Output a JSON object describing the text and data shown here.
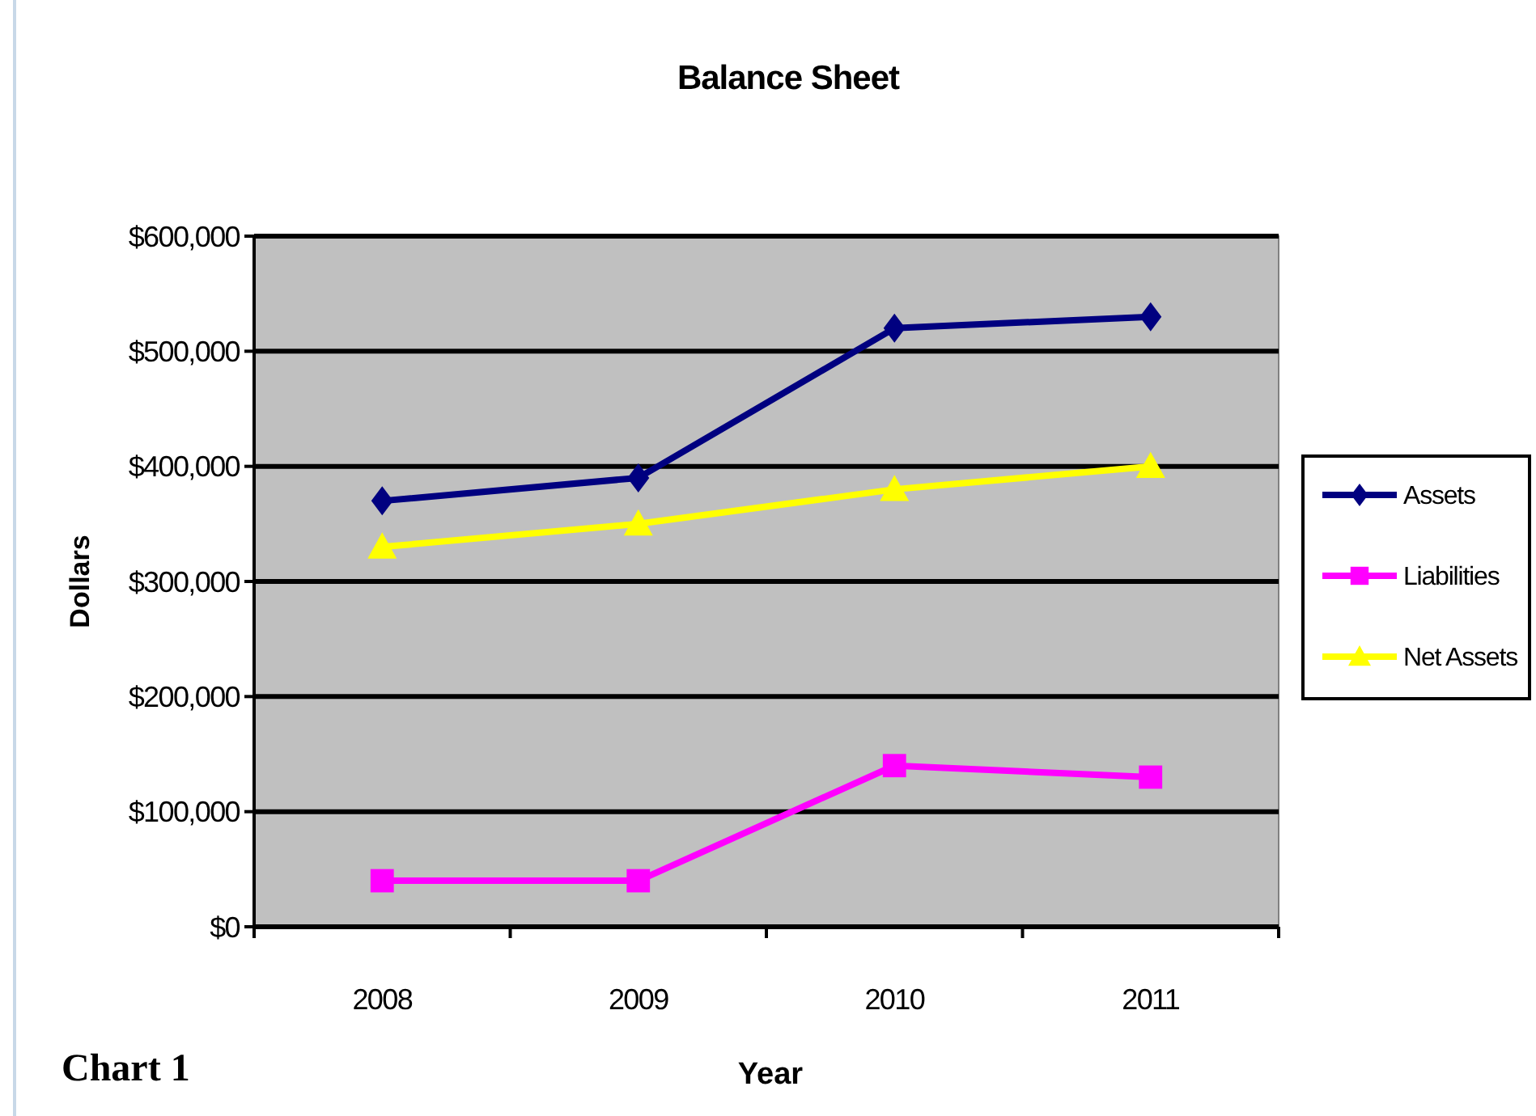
{
  "chart_data": {
    "type": "line",
    "title": "Balance Sheet",
    "xlabel": "Year",
    "ylabel": "Dollars",
    "annotations": [
      "Chart 1"
    ],
    "categories": [
      "2008",
      "2009",
      "2010",
      "2011"
    ],
    "series": [
      {
        "name": "Assets",
        "color": "#000080",
        "marker": "diamond",
        "values": [
          370000,
          390000,
          520000,
          530000
        ]
      },
      {
        "name": "Liabilities",
        "color": "#ff00ff",
        "marker": "square",
        "values": [
          40000,
          40000,
          140000,
          130000
        ]
      },
      {
        "name": "Net Assets",
        "color": "#ffff00",
        "marker": "triangle",
        "values": [
          330000,
          350000,
          380000,
          400000
        ]
      }
    ],
    "ylim": [
      0,
      600000
    ],
    "yticks": [
      {
        "value": 0,
        "label": "$0"
      },
      {
        "value": 100000,
        "label": "$100,000"
      },
      {
        "value": 200000,
        "label": "$200,000"
      },
      {
        "value": 300000,
        "label": "$300,000"
      },
      {
        "value": 400000,
        "label": "$400,000"
      },
      {
        "value": 500000,
        "label": "$500,000"
      },
      {
        "value": 600000,
        "label": "$600,000"
      }
    ],
    "grid": "y",
    "legend": "right",
    "line_style": "solid"
  }
}
